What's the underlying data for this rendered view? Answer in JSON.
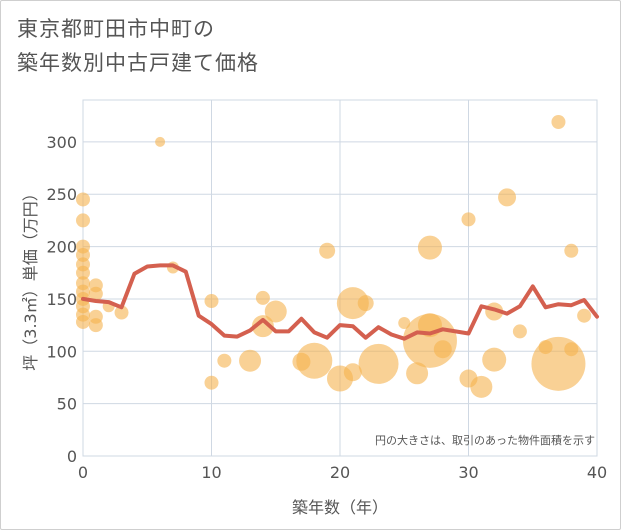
{
  "title": {
    "line1": "東京都町田市中町の",
    "line2": "築年数別中古戸建て価格"
  },
  "chart_data": {
    "type": "scatter",
    "xlabel": "築年数（年）",
    "ylabel": "坪（3.3㎡）単価（万円）",
    "xlim": [
      0,
      40
    ],
    "ylim": [
      0,
      340
    ],
    "xticks": [
      0,
      10,
      20,
      30,
      40
    ],
    "yticks": [
      0,
      50,
      100,
      150,
      200,
      250,
      300
    ],
    "grid": true,
    "note": "円の大きさは、取引のあった物件面積を示す",
    "colors": {
      "bubble": "#f5b24e",
      "line": "#d4604f",
      "grid": "#cfd8e3",
      "background": "#ffffff"
    },
    "bubbles": [
      {
        "x": 0,
        "y": 245,
        "r": 7
      },
      {
        "x": 0,
        "y": 225,
        "r": 7
      },
      {
        "x": 0,
        "y": 200,
        "r": 7
      },
      {
        "x": 0,
        "y": 192,
        "r": 7
      },
      {
        "x": 0,
        "y": 183,
        "r": 7
      },
      {
        "x": 0,
        "y": 175,
        "r": 7
      },
      {
        "x": 0,
        "y": 165,
        "r": 7
      },
      {
        "x": 0,
        "y": 157,
        "r": 7
      },
      {
        "x": 0,
        "y": 150,
        "r": 7
      },
      {
        "x": 0,
        "y": 143,
        "r": 7
      },
      {
        "x": 0,
        "y": 135,
        "r": 7
      },
      {
        "x": 0,
        "y": 128,
        "r": 7
      },
      {
        "x": 1,
        "y": 163,
        "r": 7
      },
      {
        "x": 1,
        "y": 155,
        "r": 7
      },
      {
        "x": 1,
        "y": 133,
        "r": 7
      },
      {
        "x": 1,
        "y": 125,
        "r": 7
      },
      {
        "x": 2,
        "y": 143,
        "r": 6
      },
      {
        "x": 3,
        "y": 137,
        "r": 7
      },
      {
        "x": 6,
        "y": 300,
        "r": 5
      },
      {
        "x": 7,
        "y": 180,
        "r": 6
      },
      {
        "x": 10,
        "y": 148,
        "r": 7
      },
      {
        "x": 10,
        "y": 70,
        "r": 7
      },
      {
        "x": 11,
        "y": 91,
        "r": 7
      },
      {
        "x": 13,
        "y": 91,
        "r": 11
      },
      {
        "x": 14,
        "y": 151,
        "r": 7
      },
      {
        "x": 14,
        "y": 124,
        "r": 11
      },
      {
        "x": 15,
        "y": 138,
        "r": 11
      },
      {
        "x": 17,
        "y": 90,
        "r": 9
      },
      {
        "x": 18,
        "y": 91,
        "r": 18
      },
      {
        "x": 19,
        "y": 196,
        "r": 8
      },
      {
        "x": 20,
        "y": 74,
        "r": 13
      },
      {
        "x": 21,
        "y": 146,
        "r": 16
      },
      {
        "x": 21,
        "y": 80,
        "r": 9
      },
      {
        "x": 22,
        "y": 146,
        "r": 8
      },
      {
        "x": 23,
        "y": 88,
        "r": 20
      },
      {
        "x": 25,
        "y": 127,
        "r": 6
      },
      {
        "x": 26,
        "y": 79,
        "r": 11
      },
      {
        "x": 27,
        "y": 110,
        "r": 27
      },
      {
        "x": 27,
        "y": 199,
        "r": 12
      },
      {
        "x": 27,
        "y": 125,
        "r": 12
      },
      {
        "x": 28,
        "y": 102,
        "r": 9
      },
      {
        "x": 30,
        "y": 226,
        "r": 7
      },
      {
        "x": 30,
        "y": 74,
        "r": 9
      },
      {
        "x": 31,
        "y": 66,
        "r": 11
      },
      {
        "x": 32,
        "y": 138,
        "r": 9
      },
      {
        "x": 32,
        "y": 92,
        "r": 12
      },
      {
        "x": 33,
        "y": 247,
        "r": 9
      },
      {
        "x": 34,
        "y": 119,
        "r": 7
      },
      {
        "x": 36,
        "y": 104,
        "r": 7
      },
      {
        "x": 37,
        "y": 319,
        "r": 7
      },
      {
        "x": 37,
        "y": 88,
        "r": 27
      },
      {
        "x": 38,
        "y": 196,
        "r": 7
      },
      {
        "x": 38,
        "y": 102,
        "r": 7
      },
      {
        "x": 39,
        "y": 134,
        "r": 7
      }
    ],
    "series": [
      {
        "type": "line",
        "x": [
          0,
          1,
          2,
          3,
          4,
          5,
          6,
          7,
          8,
          9,
          10,
          11,
          12,
          13,
          14,
          15,
          16,
          17,
          18,
          19,
          20,
          21,
          22,
          23,
          24,
          25,
          26,
          27,
          28,
          29,
          30,
          31,
          32,
          33,
          34,
          35,
          36,
          37,
          38,
          39,
          40
        ],
        "y": [
          150,
          148,
          147,
          142,
          174,
          181,
          182,
          182,
          176,
          134,
          126,
          115,
          114,
          120,
          130,
          119,
          119,
          131,
          118,
          113,
          125,
          124,
          113,
          123,
          116,
          112,
          118,
          117,
          121,
          119,
          117,
          143,
          140,
          136,
          143,
          162,
          142,
          145,
          144,
          149,
          133
        ]
      }
    ]
  }
}
